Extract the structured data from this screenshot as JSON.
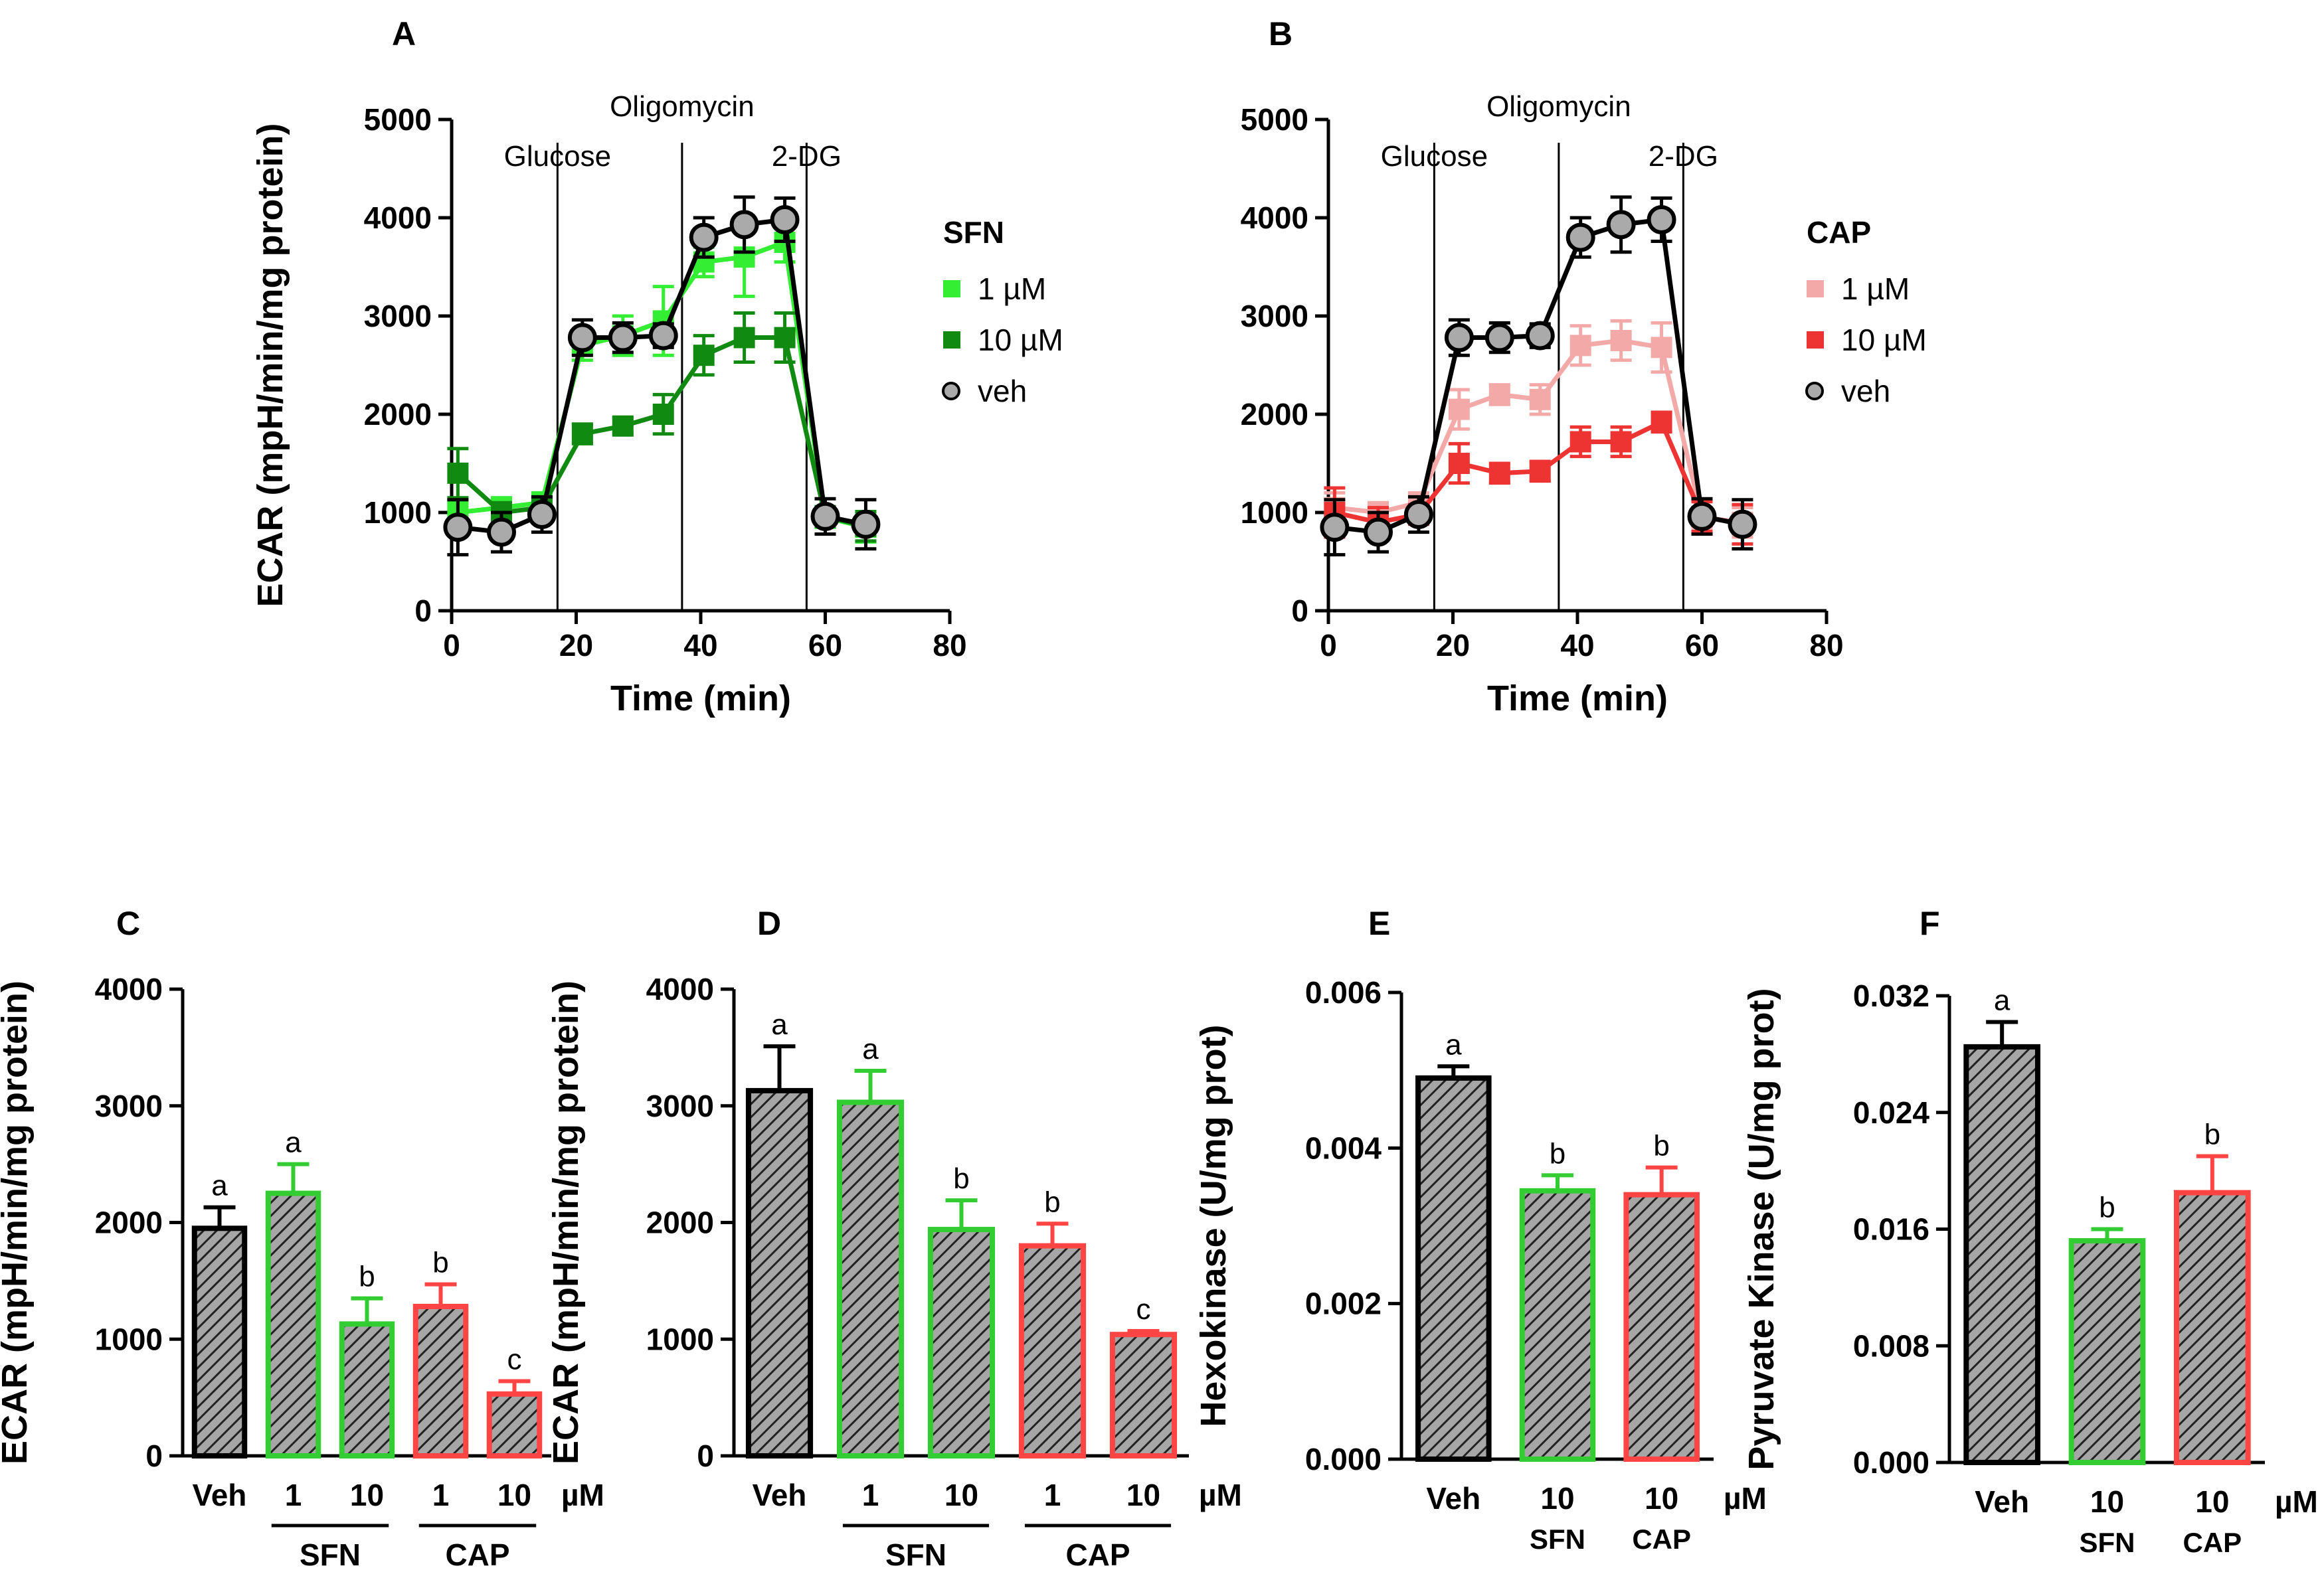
{
  "chart_data": [
    {
      "id": "A",
      "type": "line",
      "label": "A",
      "xlabel": "Time (min)",
      "ylabel": "ECAR (mpH/min/mg protein)",
      "xlim": [
        0,
        80
      ],
      "ylim": [
        0,
        5000
      ],
      "xticks": [
        0,
        20,
        40,
        60,
        80
      ],
      "yticks": [
        0,
        1000,
        2000,
        3000,
        4000,
        5000
      ],
      "injections": [
        {
          "x": 17,
          "label": "Glucose",
          "label_row": "low"
        },
        {
          "x": 37,
          "label": "Oligomycin",
          "label_row": "high"
        },
        {
          "x": 57,
          "label": "2-DG",
          "label_row": "low"
        }
      ],
      "legend_title": "SFN",
      "x": [
        1,
        8,
        14.5,
        21,
        27.5,
        34,
        40.5,
        47,
        53.5,
        60,
        66.5
      ],
      "series": [
        {
          "name": "1 µM",
          "color": "#33ee33",
          "marker": "square",
          "values": [
            1000,
            1050,
            1100,
            2700,
            2800,
            2950,
            3550,
            3600,
            3750,
            950,
            850
          ],
          "errors": [
            120,
            100,
            100,
            150,
            200,
            350,
            150,
            400,
            200,
            100,
            150
          ]
        },
        {
          "name": "10 µM",
          "color": "#118a11",
          "marker": "square",
          "values": [
            1400,
            1000,
            1050,
            1800,
            1880,
            2000,
            2600,
            2780,
            2780,
            960,
            860
          ],
          "errors": [
            250,
            100,
            100,
            100,
            80,
            200,
            200,
            250,
            250,
            100,
            150
          ]
        },
        {
          "name": "veh",
          "color": "#000000",
          "marker": "circle",
          "fill": "#aaaaaa",
          "values": [
            850,
            800,
            980,
            2780,
            2780,
            2800,
            3800,
            3930,
            3980,
            960,
            880
          ],
          "errors": [
            280,
            200,
            180,
            180,
            150,
            120,
            200,
            280,
            220,
            180,
            250
          ]
        }
      ]
    },
    {
      "id": "B",
      "type": "line",
      "label": "B",
      "xlabel": "Time (min)",
      "ylabel": "",
      "xlim": [
        0,
        80
      ],
      "ylim": [
        0,
        5000
      ],
      "xticks": [
        0,
        20,
        40,
        60,
        80
      ],
      "yticks": [
        0,
        1000,
        2000,
        3000,
        4000,
        5000
      ],
      "injections": [
        {
          "x": 17,
          "label": "Glucose",
          "label_row": "low"
        },
        {
          "x": 37,
          "label": "Oligomycin",
          "label_row": "high"
        },
        {
          "x": 57,
          "label": "2-DG",
          "label_row": "low"
        }
      ],
      "legend_title": "CAP",
      "x": [
        1,
        8,
        14.5,
        21,
        27.5,
        34,
        40.5,
        47,
        53.5,
        60,
        66.5
      ],
      "series": [
        {
          "name": "1 µM",
          "color": "#f4a9a9",
          "marker": "square",
          "values": [
            1050,
            1000,
            1100,
            2050,
            2200,
            2150,
            2700,
            2750,
            2680,
            950,
            900
          ],
          "errors": [
            150,
            100,
            100,
            200,
            100,
            150,
            200,
            200,
            250,
            100,
            150
          ]
        },
        {
          "name": "10 µM",
          "color": "#ee3333",
          "marker": "square",
          "values": [
            1000,
            900,
            980,
            1500,
            1400,
            1420,
            1720,
            1720,
            1920,
            960,
            880
          ],
          "errors": [
            250,
            150,
            100,
            200,
            100,
            100,
            150,
            150,
            100,
            150,
            200
          ]
        },
        {
          "name": "veh",
          "color": "#000000",
          "marker": "circle",
          "fill": "#aaaaaa",
          "values": [
            850,
            800,
            980,
            2780,
            2780,
            2800,
            3800,
            3930,
            3980,
            960,
            880
          ],
          "errors": [
            280,
            200,
            180,
            180,
            150,
            120,
            200,
            280,
            220,
            180,
            250
          ]
        }
      ]
    },
    {
      "id": "C",
      "type": "bar",
      "label": "C",
      "ylabel": "ECAR (mpH/min/mg protein)",
      "ylim": [
        0,
        4000
      ],
      "yticks": [
        0,
        1000,
        2000,
        3000,
        4000
      ],
      "unit": "µM",
      "categories": [
        "Veh",
        "1",
        "10",
        "1",
        "10"
      ],
      "groups": [
        {
          "label": "SFN",
          "from": 1,
          "to": 2
        },
        {
          "label": "CAP",
          "from": 3,
          "to": 4
        }
      ],
      "values": [
        1950,
        2250,
        1130,
        1280,
        530
      ],
      "errors": [
        180,
        250,
        220,
        190,
        110
      ],
      "colors": [
        "#000000",
        "#33cc33",
        "#33cc33",
        "#ff4444",
        "#ff4444"
      ],
      "letters": [
        "a",
        "a",
        "b",
        "b",
        "c"
      ]
    },
    {
      "id": "D",
      "type": "bar",
      "label": "D",
      "ylabel": "ECAR (mpH/min/mg protein)",
      "ylim": [
        0,
        4000
      ],
      "yticks": [
        0,
        1000,
        2000,
        3000,
        4000
      ],
      "unit": "µM",
      "categories": [
        "Veh",
        "1",
        "10",
        "1",
        "10"
      ],
      "groups": [
        {
          "label": "SFN",
          "from": 1,
          "to": 2
        },
        {
          "label": "CAP",
          "from": 3,
          "to": 4
        }
      ],
      "values": [
        3130,
        3030,
        1940,
        1800,
        1040
      ],
      "errors": [
        380,
        270,
        250,
        190,
        30
      ],
      "colors": [
        "#000000",
        "#33cc33",
        "#33cc33",
        "#ff4444",
        "#ff4444"
      ],
      "letters": [
        "a",
        "a",
        "b",
        "b",
        "c"
      ]
    },
    {
      "id": "E",
      "type": "bar",
      "label": "E",
      "ylabel": "Hexokinase (U/mg prot)",
      "ylim": [
        0,
        0.006
      ],
      "yticks": [
        0,
        0.002,
        0.004,
        0.006
      ],
      "ytick_labels": [
        "0.000",
        "0.002",
        "0.004",
        "0.006"
      ],
      "unit": "µM",
      "categories": [
        "Veh",
        "10",
        "10"
      ],
      "sublabels": [
        "",
        "SFN",
        "CAP"
      ],
      "values": [
        0.0049,
        0.00345,
        0.0034
      ],
      "errors": [
        0.00015,
        0.0002,
        0.00035
      ],
      "colors": [
        "#000000",
        "#33cc33",
        "#ff4444"
      ],
      "letters": [
        "a",
        "b",
        "b"
      ]
    },
    {
      "id": "F",
      "type": "bar",
      "label": "F",
      "ylabel": "Pyruvate Kinase (U/mg prot)",
      "ylim": [
        0,
        0.032
      ],
      "yticks": [
        0,
        0.008,
        0.016,
        0.024,
        0.032
      ],
      "ytick_labels": [
        "0.000",
        "0.008",
        "0.016",
        "0.024",
        "0.032"
      ],
      "unit": "µM",
      "categories": [
        "Veh",
        "10",
        "10"
      ],
      "sublabels": [
        "",
        "SFN",
        "CAP"
      ],
      "values": [
        0.0285,
        0.0152,
        0.0185
      ],
      "errors": [
        0.0017,
        0.0008,
        0.0025
      ],
      "colors": [
        "#000000",
        "#33cc33",
        "#ff4444"
      ],
      "letters": [
        "a",
        "b",
        "b"
      ]
    }
  ]
}
